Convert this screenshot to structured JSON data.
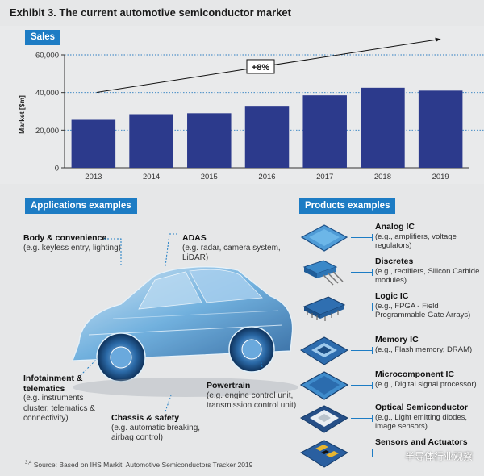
{
  "title": "Exhibit 3. The current automotive semiconductor market",
  "sales_tag": "Sales",
  "applications_tag": "Applications examples",
  "products_tag": "Products examples",
  "chart_data": {
    "type": "bar",
    "title": "Sales",
    "categories": [
      "2013",
      "2014",
      "2015",
      "2016",
      "2017",
      "2018",
      "2019"
    ],
    "values": [
      25500,
      28500,
      29000,
      32500,
      38500,
      42500,
      41000
    ],
    "ylabel": "Market [$m]",
    "ylim": [
      0,
      60000
    ],
    "yticks": [
      "0",
      "20,000",
      "40,000",
      "60,000"
    ],
    "annotation": "+8%",
    "grid": true,
    "bar_color": "#2c3a8c"
  },
  "applications": [
    {
      "title": "Body & convenience",
      "desc": "(e.g. keyless entry, lighting)"
    },
    {
      "title": "ADAS",
      "desc": "(e.g. radar, camera system, LiDAR)"
    },
    {
      "title": "Infotainment & telematics",
      "desc": "(e.g. instruments cluster, telematics & connectivity)"
    },
    {
      "title": "Chassis & safety",
      "desc": "(e.g. automatic breaking, airbag control)"
    },
    {
      "title": "Powertrain",
      "desc": "(e.g. engine control unit, transmission control unit)"
    }
  ],
  "products": [
    {
      "title": "Analog IC",
      "desc": "(e.g., amplifiers, voltage regulators)",
      "icon": "analog-chip-icon"
    },
    {
      "title": "Discretes",
      "desc": "(e.g., rectifiers, Silicon Carbide modules)",
      "icon": "discrete-transistor-icon"
    },
    {
      "title": "Logic IC",
      "desc": "(e.g., FPGA - Field Programmable Gate Arrays)",
      "icon": "logic-chip-icon"
    },
    {
      "title": "Memory IC",
      "desc": "(e.g., Flash memory, DRAM)",
      "icon": "memory-chip-icon"
    },
    {
      "title": "Microcomponent IC",
      "desc": "(e.g., Digital signal processor)",
      "icon": "microcomponent-chip-icon"
    },
    {
      "title": "Optical Semiconductor",
      "desc": "(e.g., Light emitting diodes, image sensors)",
      "icon": "optical-semiconductor-icon"
    },
    {
      "title": "Sensors and Actuators",
      "desc": "",
      "icon": "sensor-actuator-icon"
    }
  ],
  "source": "Source: Based on IHS Markit, Automotive Semiconductors Tracker 2019",
  "source_mark": "3,4",
  "watermark": "半导体行业观察"
}
